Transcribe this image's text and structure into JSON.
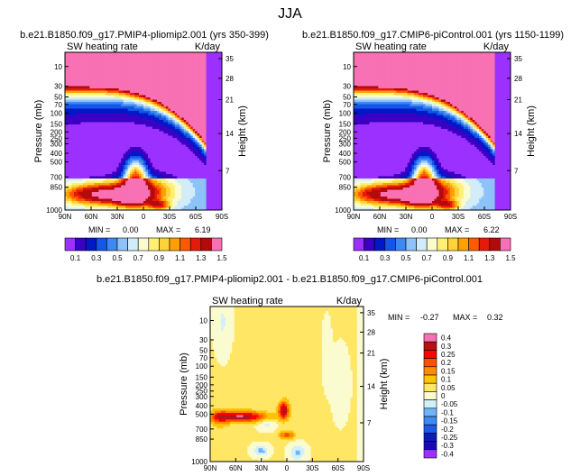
{
  "figure_title": "JJA",
  "colors": {
    "seq": [
      "#9b30ff",
      "#3a00c4",
      "#0018c8",
      "#1456e8",
      "#3e88f2",
      "#8dc3f8",
      "#d2ecfa",
      "#fbfbd0",
      "#fff073",
      "#ffd23a",
      "#ffa000",
      "#ff5a00",
      "#e61a0a",
      "#b40a0a",
      "#f871b4"
    ],
    "diff": [
      "#9b30ff",
      "#1a0ab4",
      "#0a1eb4",
      "#1e5ae6",
      "#3c8cf5",
      "#6eb4fa",
      "#d2f0fa",
      "#fbfbd0",
      "#ffe664",
      "#ffc300",
      "#ff8c00",
      "#ff5000",
      "#ff0000",
      "#b41414",
      "#f871b4"
    ],
    "neg": "#000000"
  },
  "chart_data": [
    {
      "type": "heatmap",
      "title": "b.e21.B1850.f09_g17.PMIP4-pliomip2.001 (yrs 350-399)",
      "subtitle_left": "SW heating rate",
      "subtitle_right": "K/day",
      "ylabel": "Pressure (mb)",
      "ylabel_right": "Height (km)",
      "yticks": [
        "10",
        "30",
        "50",
        "70",
        "100",
        "150",
        "200",
        "250",
        "300",
        "400",
        "500",
        "700",
        "850",
        "1000"
      ],
      "yticks_right": [
        "35",
        "28",
        "21",
        "14",
        "7"
      ],
      "xticks": [
        "90N",
        "60N",
        "30N",
        "0",
        "30S",
        "60S",
        "90S"
      ],
      "min_label": "MIN =",
      "min_value": "0.00",
      "max_label": "MAX =",
      "max_value": "6.19",
      "colorbar_labels": [
        "0.1",
        "0.3",
        "0.5",
        "0.7",
        "0.9",
        "1.1",
        "1.3",
        "1.5"
      ]
    },
    {
      "type": "heatmap",
      "title": "b.e21.B1850.f09_g17.CMIP6-piControl.001 (yrs 1150-1199)",
      "subtitle_left": "SW heating rate",
      "subtitle_right": "K/day",
      "ylabel": "Pressure (mb)",
      "ylabel_right": "Height (km)",
      "yticks": [
        "10",
        "30",
        "50",
        "70",
        "100",
        "150",
        "200",
        "250",
        "300",
        "400",
        "500",
        "700",
        "850",
        "1000"
      ],
      "yticks_right": [
        "35",
        "28",
        "21",
        "14",
        "7"
      ],
      "xticks": [
        "90N",
        "60N",
        "30N",
        "0",
        "30S",
        "60S",
        "90S"
      ],
      "min_label": "MIN =",
      "min_value": "0.00",
      "max_label": "MAX =",
      "max_value": "6.22",
      "colorbar_labels": [
        "0.1",
        "0.3",
        "0.5",
        "0.7",
        "0.9",
        "1.1",
        "1.3",
        "1.5"
      ]
    },
    {
      "type": "heatmap",
      "title": "b.e21.B1850.f09_g17.PMIP4-pliomip2.001 - b.e21.B1850.f09_g17.CMIP6-piControl.001",
      "subtitle_left": "SW heating rate",
      "subtitle_right": "K/day",
      "ylabel": "Pressure (mb)",
      "ylabel_right": "Height (km)",
      "yticks": [
        "10",
        "30",
        "50",
        "70",
        "100",
        "150",
        "200",
        "250",
        "300",
        "400",
        "500",
        "700",
        "850",
        "1000"
      ],
      "yticks_right": [
        "35",
        "28",
        "21",
        "14",
        "7"
      ],
      "xticks": [
        "90N",
        "60N",
        "30N",
        "0",
        "30S",
        "60S",
        "90S"
      ],
      "min_label": "MIN =",
      "min_value": "-0.27",
      "max_label": "MAX =",
      "max_value": "0.32",
      "colorbar_labels": [
        "0.4",
        "0.3",
        "0.25",
        "0.2",
        "0.15",
        "0.1",
        "0.05",
        "0",
        "-0.05",
        "-0.1",
        "-0.15",
        "-0.2",
        "-0.25",
        "-0.3",
        "-0.4"
      ]
    }
  ]
}
